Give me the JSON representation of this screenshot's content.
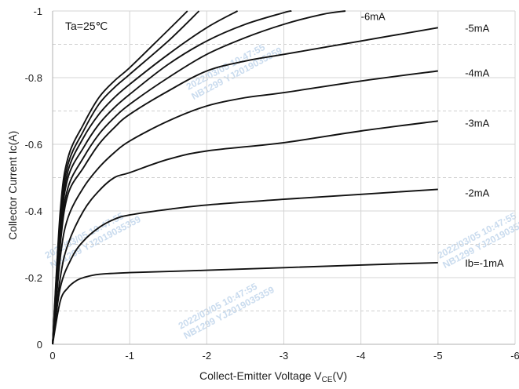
{
  "chart_data": {
    "type": "line",
    "annotation": "Ta=25℃",
    "xlabel": "Collect-Emitter Voltage  V",
    "xlabel_sub": "CE",
    "xlabel_unit": "(V)",
    "ylabel": "Collector  Current   Ic(A)",
    "xlim": [
      0,
      -6
    ],
    "ylim": [
      0,
      -1
    ],
    "x_ticks": [
      {
        "value": 0,
        "label": "0"
      },
      {
        "value": -1,
        "label": "-1"
      },
      {
        "value": -2,
        "label": "-2"
      },
      {
        "value": -3,
        "label": "-3"
      },
      {
        "value": -4,
        "label": "-4"
      },
      {
        "value": -5,
        "label": "-5"
      },
      {
        "value": -6,
        "label": "-6"
      }
    ],
    "y_ticks": [
      {
        "value": 0,
        "label": "0"
      },
      {
        "value": -0.2,
        "label": "-0.2"
      },
      {
        "value": -0.4,
        "label": "-0.4"
      },
      {
        "value": -0.6,
        "label": "-0.6"
      },
      {
        "value": -0.8,
        "label": "-0.8"
      },
      {
        "value": -1,
        "label": "-1"
      }
    ],
    "grid": {
      "major": "solid",
      "minor": "dashed"
    },
    "series": [
      {
        "name": "Ib=-1mA",
        "x": [
          0,
          -0.1,
          -0.2,
          -0.3,
          -0.4,
          -0.6,
          -1,
          -2,
          -3,
          -4,
          -5
        ],
        "y": [
          0,
          -0.13,
          -0.17,
          -0.19,
          -0.2,
          -0.21,
          -0.215,
          -0.222,
          -0.23,
          -0.238,
          -0.245
        ]
      },
      {
        "name": "-2mA",
        "x": [
          0,
          -0.1,
          -0.25,
          -0.4,
          -0.6,
          -0.8,
          -1,
          -1.5,
          -2,
          -3,
          -4,
          -5
        ],
        "y": [
          0,
          -0.17,
          -0.26,
          -0.31,
          -0.35,
          -0.375,
          -0.388,
          -0.405,
          -0.418,
          -0.435,
          -0.45,
          -0.465
        ]
      },
      {
        "name": "-3mA",
        "x": [
          0,
          -0.1,
          -0.2,
          -0.4,
          -0.6,
          -0.8,
          -1,
          -1.5,
          -2,
          -3,
          -4,
          -5
        ],
        "y": [
          0,
          -0.2,
          -0.3,
          -0.4,
          -0.46,
          -0.5,
          -0.515,
          -0.555,
          -0.58,
          -0.605,
          -0.64,
          -0.67
        ]
      },
      {
        "name": "-4mA",
        "x": [
          0,
          -0.1,
          -0.2,
          -0.4,
          -0.6,
          -0.8,
          -1,
          -1.5,
          -2,
          -2.5,
          -3,
          -4,
          -5
        ],
        "y": [
          0,
          -0.26,
          -0.38,
          -0.47,
          -0.53,
          -0.575,
          -0.61,
          -0.67,
          -0.715,
          -0.74,
          -0.755,
          -0.79,
          -0.82
        ]
      },
      {
        "name": "-5mA",
        "x": [
          0,
          -0.1,
          -0.2,
          -0.4,
          -0.6,
          -0.8,
          -1,
          -1.5,
          -2,
          -2.5,
          -3,
          -4,
          -5
        ],
        "y": [
          0,
          -0.3,
          -0.45,
          -0.53,
          -0.6,
          -0.65,
          -0.69,
          -0.76,
          -0.82,
          -0.85,
          -0.87,
          -0.91,
          -0.95
        ]
      },
      {
        "name": "-6mA",
        "x": [
          0,
          -0.1,
          -0.2,
          -0.4,
          -0.6,
          -0.8,
          -1,
          -1.5,
          -2,
          -2.5,
          -3,
          -3.5,
          -3.8
        ],
        "y": [
          0,
          -0.32,
          -0.47,
          -0.56,
          -0.63,
          -0.68,
          -0.72,
          -0.8,
          -0.87,
          -0.92,
          -0.96,
          -0.99,
          -1.0
        ]
      },
      {
        "name": "",
        "x": [
          0,
          -0.1,
          -0.2,
          -0.4,
          -0.6,
          -0.8,
          -1,
          -1.5,
          -2,
          -2.5,
          -3,
          -3.1
        ],
        "y": [
          0,
          -0.34,
          -0.5,
          -0.59,
          -0.66,
          -0.71,
          -0.75,
          -0.84,
          -0.91,
          -0.96,
          -0.995,
          -1.0
        ]
      },
      {
        "name": "",
        "x": [
          0,
          -0.1,
          -0.2,
          -0.4,
          -0.6,
          -0.8,
          -1,
          -1.5,
          -2,
          -2.4
        ],
        "y": [
          0,
          -0.36,
          -0.52,
          -0.62,
          -0.69,
          -0.74,
          -0.78,
          -0.87,
          -0.95,
          -1.0
        ]
      },
      {
        "name": "",
        "x": [
          0,
          -0.1,
          -0.2,
          -0.4,
          -0.6,
          -0.8,
          -1,
          -1.5,
          -1.9
        ],
        "y": [
          0,
          -0.38,
          -0.54,
          -0.64,
          -0.72,
          -0.77,
          -0.81,
          -0.91,
          -1.0
        ]
      },
      {
        "name": "",
        "x": [
          0,
          -0.1,
          -0.2,
          -0.4,
          -0.6,
          -0.8,
          -1,
          -1.4,
          -1.75
        ],
        "y": [
          0,
          -0.4,
          -0.56,
          -0.66,
          -0.74,
          -0.79,
          -0.83,
          -0.92,
          -1.0
        ]
      }
    ],
    "series_label_positions": [
      {
        "series": "Ib=-1mA",
        "x": -5.35,
        "y": -0.245
      },
      {
        "series": "-2mA",
        "x": -5.35,
        "y": -0.455
      },
      {
        "series": "-3mA",
        "x": -5.35,
        "y": -0.665
      },
      {
        "series": "-4mA",
        "x": -5.35,
        "y": -0.815
      },
      {
        "series": "-5mA",
        "x": -5.35,
        "y": -0.95
      },
      {
        "series": "-6mA",
        "x": -4.0,
        "y": -0.985
      }
    ]
  },
  "watermarks": [
    "2022/03/05  10:47:55",
    "NB1299  YJ2019035359"
  ],
  "colors": {
    "curve": "#111111",
    "grid_major": "#d4d4d4",
    "grid_minor": "#cfcfcf",
    "watermark": "#c9dbee"
  }
}
